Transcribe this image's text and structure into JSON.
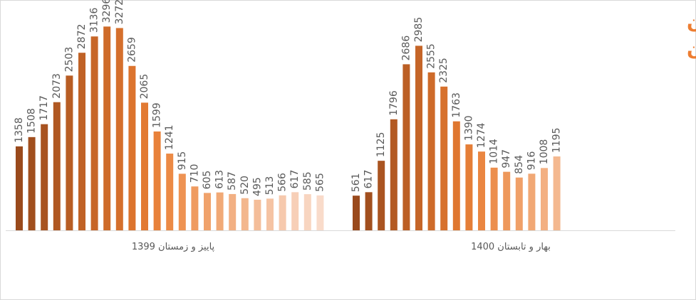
{
  "chart_data": {
    "type": "bar",
    "title": [
      "آمار هفتگی جان‌باختگان",
      "کرونا در ایران"
    ],
    "title_color": "#ed7d31",
    "ylim": [
      0,
      3300
    ],
    "groups": [
      {
        "label": "پاییز و زمستان 1399",
        "values": [
          1358,
          1508,
          1717,
          2073,
          2503,
          2872,
          3136,
          3296,
          3272,
          2659,
          2065,
          1599,
          1241,
          915,
          710,
          605,
          613,
          587,
          520,
          495,
          513,
          566,
          617,
          585,
          565
        ],
        "colors": [
          "#9a4a1c",
          "#a14f1e",
          "#a85320",
          "#b05822",
          "#b85d24",
          "#c06226",
          "#c76628",
          "#ce6b2a",
          "#d56f2c",
          "#dc742e",
          "#e27a33",
          "#e8813a",
          "#ec8a45",
          "#ee9353",
          "#ef9b60",
          "#f0a26b",
          "#f1a976",
          "#f2b083",
          "#f3b78e",
          "#f4bd99",
          "#f5c3a3",
          "#f6c9ad",
          "#f7cfb7",
          "#f8d5c0",
          "#f9dbca"
        ]
      },
      {
        "label": "بهار و تابستان 1400",
        "values": [
          561,
          617,
          1125,
          1796,
          2686,
          2985,
          2555,
          2325,
          1763,
          1390,
          1274,
          1014,
          947,
          854,
          916,
          1008,
          1195
        ],
        "colors": [
          "#9a4a1c",
          "#a24f1e",
          "#aa5421",
          "#b35a23",
          "#bc5f25",
          "#c56528",
          "#ce6b2a",
          "#d7712d",
          "#df7730",
          "#e57e37",
          "#ea8641",
          "#ec8f4e",
          "#ee985b",
          "#f0a068",
          "#f1a875",
          "#f3b082",
          "#f4b88f"
        ]
      }
    ]
  }
}
